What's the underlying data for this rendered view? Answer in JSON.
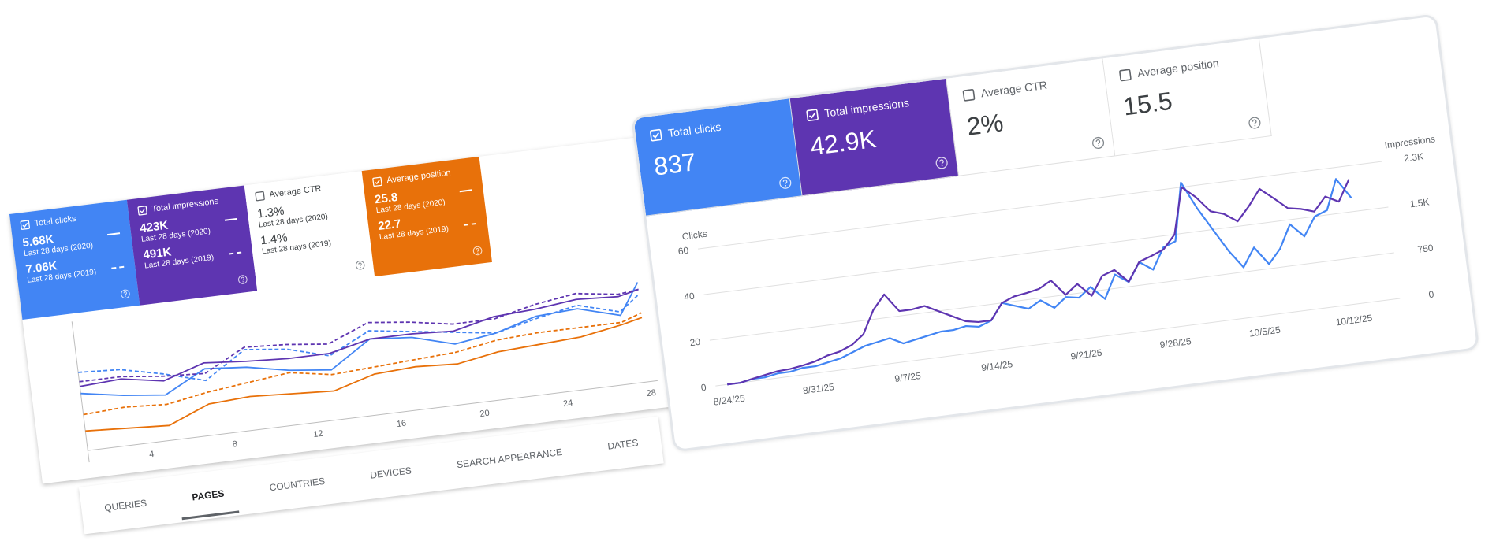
{
  "left_panel": {
    "metrics": [
      {
        "label": "Total clicks",
        "color": "#4285f4",
        "checked": true,
        "rows": [
          {
            "value": "5.68K",
            "period": "Last 28 days (2020)"
          },
          {
            "value": "7.06K",
            "period": "Last 28 days (2019)"
          }
        ]
      },
      {
        "label": "Total impressions",
        "color": "#5e35b1",
        "checked": true,
        "rows": [
          {
            "value": "423K",
            "period": "Last 28 days (2020)"
          },
          {
            "value": "491K",
            "period": "Last 28 days (2019)"
          }
        ]
      },
      {
        "label": "Average CTR",
        "color": "#ffffff",
        "checked": false,
        "rows": [
          {
            "value": "1.3%",
            "period": "Last 28 days (2020)"
          },
          {
            "value": "1.4%",
            "period": "Last 28 days (2019)"
          }
        ]
      },
      {
        "label": "Average position",
        "color": "#e8710a",
        "checked": true,
        "rows": [
          {
            "value": "25.8",
            "period": "Last 28 days (2020)"
          },
          {
            "value": "22.7",
            "period": "Last 28 days (2019)"
          }
        ]
      }
    ],
    "tabs": [
      "QUERIES",
      "PAGES",
      "COUNTRIES",
      "DEVICES",
      "SEARCH APPEARANCE",
      "DATES"
    ],
    "selected_tab_index": 1
  },
  "right_panel": {
    "metrics": [
      {
        "label": "Total clicks",
        "value": "837",
        "color": "#4285f4",
        "checked": true
      },
      {
        "label": "Total impressions",
        "value": "42.9K",
        "color": "#5e35b1",
        "checked": true
      },
      {
        "label": "Average CTR",
        "value": "2%",
        "color": "#ffffff",
        "checked": false
      },
      {
        "label": "Average position",
        "value": "15.5",
        "color": "#ffffff",
        "checked": false
      }
    ]
  },
  "chart_data": [
    {
      "type": "line",
      "x": [
        1,
        3,
        5,
        7,
        9,
        11,
        13,
        15,
        17,
        19,
        21,
        23,
        25,
        27,
        28
      ],
      "xlim": [
        1,
        28
      ],
      "xticks": [
        4,
        8,
        12,
        16,
        20,
        24,
        28
      ],
      "ylim": [
        0,
        100
      ],
      "series": [
        {
          "color": "#4285f4",
          "dash": false,
          "values": [
            42,
            36,
            32,
            50,
            47,
            40,
            36,
            58,
            55,
            45,
            50,
            60,
            62,
            52,
            78
          ]
        },
        {
          "color": "#4285f4",
          "dash": true,
          "values": [
            60,
            58,
            50,
            40,
            62,
            58,
            48,
            65,
            60,
            55,
            50,
            58,
            65,
            55,
            68
          ]
        },
        {
          "color": "#5e35b1",
          "dash": false,
          "values": [
            48,
            50,
            44,
            55,
            52,
            50,
            50,
            58,
            58,
            56,
            64,
            66,
            70,
            68,
            72
          ]
        },
        {
          "color": "#5e35b1",
          "dash": true,
          "values": [
            52,
            52,
            48,
            46,
            64,
            62,
            58,
            72,
            68,
            62,
            62,
            70,
            75,
            70,
            72
          ]
        },
        {
          "color": "#e8710a",
          "dash": false,
          "values": [
            10,
            8,
            6,
            20,
            22,
            20,
            18,
            28,
            30,
            28,
            34,
            36,
            38,
            44,
            48
          ]
        },
        {
          "color": "#e8710a",
          "dash": true,
          "values": [
            24,
            26,
            24,
            30,
            34,
            38,
            32,
            34,
            36,
            38,
            44,
            46,
            46,
            46,
            52
          ]
        }
      ]
    },
    {
      "type": "line",
      "x": [
        "8/24/25",
        "8/25/25",
        "8/26/25",
        "8/27/25",
        "8/28/25",
        "8/29/25",
        "8/30/25",
        "8/31/25",
        "9/1/25",
        "9/2/25",
        "9/3/25",
        "9/4/25",
        "9/5/25",
        "9/6/25",
        "9/7/25",
        "9/8/25",
        "9/9/25",
        "9/10/25",
        "9/11/25",
        "9/12/25",
        "9/13/25",
        "9/14/25",
        "9/15/25",
        "9/16/25",
        "9/17/25",
        "9/18/25",
        "9/19/25",
        "9/20/25",
        "9/21/25",
        "9/22/25",
        "9/23/25",
        "9/24/25",
        "9/25/25",
        "9/26/25",
        "9/27/25",
        "9/28/25",
        "9/29/25",
        "9/30/25",
        "10/1/25",
        "10/2/25",
        "10/3/25",
        "10/4/25",
        "10/5/25",
        "10/6/25",
        "10/7/25",
        "10/8/25",
        "10/9/25",
        "10/10/25",
        "10/11/25",
        "10/12/25",
        "10/13/25"
      ],
      "xticks": [
        "8/24/25",
        "8/31/25",
        "9/7/25",
        "9/14/25",
        "9/21/25",
        "9/28/25",
        "10/5/25",
        "10/12/25"
      ],
      "y_label": "Clicks",
      "y2_label": "Impressions",
      "ylim": [
        0,
        65
      ],
      "yticks": [
        0,
        20,
        40,
        60
      ],
      "y2lim": [
        0,
        2437.5
      ],
      "y2ticks": [
        0,
        750,
        {
          "value": 1500,
          "label": "1.5K"
        },
        {
          "value": 2250,
          "label": "2.3K"
        }
      ],
      "grid": true,
      "series": [
        {
          "color": "#4285f4",
          "values": [
            0,
            0,
            1,
            1,
            2,
            2,
            3,
            3,
            4,
            5,
            7,
            9,
            10,
            11,
            8,
            9,
            10,
            11,
            11,
            12,
            11,
            13,
            20,
            18,
            16,
            19,
            15,
            19,
            18,
            22,
            16,
            26,
            22,
            30,
            26,
            35,
            37,
            62,
            50,
            40,
            30,
            22,
            30,
            22,
            28,
            38,
            32,
            40,
            42,
            55,
            46
          ]
        },
        {
          "color": "#5e35b1",
          "axis": "y2",
          "values": [
            0,
            0,
            40,
            75,
            110,
            120,
            150,
            190,
            260,
            300,
            380,
            530,
            900,
            1130,
            830,
            830,
            860,
            750,
            640,
            530,
            490,
            490,
            750,
            830,
            860,
            900,
            1010,
            750,
            900,
            680,
            980,
            1050,
            830,
            1130,
            1200,
            1280,
            1500,
            2250,
            2060,
            1800,
            1730,
            1580,
            1800,
            2060,
            1880,
            1690,
            1650,
            1580,
            1800,
            1690,
            2030
          ]
        }
      ]
    }
  ]
}
